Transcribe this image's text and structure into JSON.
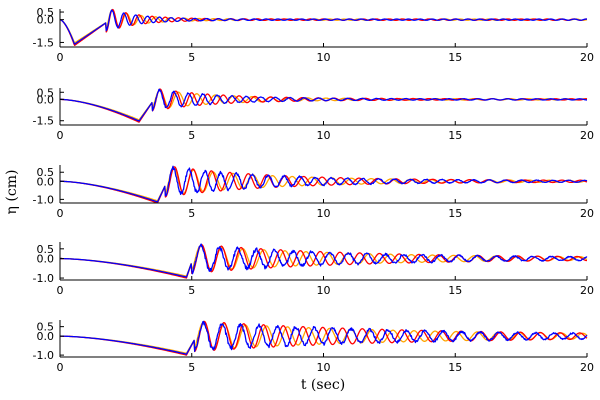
{
  "chart_data": {
    "type": "line",
    "grid": false,
    "legend": "none",
    "ylabel": "η (cm)",
    "xlabel": "t (sec)",
    "series_colors": {
      "orange": "#ffa500",
      "red": "#ff0000",
      "blue": "#0000ff"
    },
    "panels": [
      {
        "xlim": [
          0,
          20
        ],
        "ylim": [
          -1.8,
          0.7
        ],
        "xticks": [
          0,
          5,
          10,
          15,
          20
        ],
        "xtick_labels": [
          "0",
          "5",
          "10",
          "15",
          "20"
        ],
        "yticks": [
          0.5,
          0.0,
          -1.5
        ],
        "ytick_labels": [
          "0.5",
          "0.0",
          "-1.5"
        ],
        "trough": {
          "start": 0.0,
          "t": 0.55,
          "depth": -1.7,
          "end": 1.5
        },
        "wave": {
          "onset": 1.75,
          "amp": 0.7,
          "decay": 1.2,
          "red_period": 0.5,
          "orange_period": 0.55,
          "blue_period": 0.45,
          "noise": 0.02
        }
      },
      {
        "xlim": [
          0,
          20
        ],
        "ylim": [
          -1.8,
          0.8
        ],
        "xticks": [
          0,
          5,
          10,
          15,
          20
        ],
        "xtick_labels": [
          "0",
          "5",
          "10",
          "15",
          "20"
        ],
        "yticks": [
          0.5,
          0.0,
          -1.5
        ],
        "ytick_labels": [
          "0.5",
          "0.0",
          "-1.5"
        ],
        "trough": {
          "start": 0.0,
          "t": 3.0,
          "depth": -1.6,
          "end": 3.5
        },
        "wave": {
          "onset": 3.5,
          "amp": 0.7,
          "decay": 2.5,
          "red_period": 0.6,
          "orange_period": 0.7,
          "blue_period": 0.55,
          "noise": 0.05
        }
      },
      {
        "xlim": [
          0,
          20
        ],
        "ylim": [
          -1.2,
          0.9
        ],
        "xticks": [
          0,
          5,
          10,
          15,
          20
        ],
        "xtick_labels": [
          "0",
          "5",
          "10",
          "15",
          "20"
        ],
        "yticks": [
          0.5,
          0.0,
          -1.0
        ],
        "ytick_labels": [
          "0.5",
          "0.0",
          "-1.0"
        ],
        "trough": {
          "start": 0.0,
          "t": 3.7,
          "depth": -1.2,
          "end": 4.0
        },
        "wave": {
          "onset": 4.0,
          "amp": 0.75,
          "decay": 4.0,
          "red_period": 0.7,
          "orange_period": 0.75,
          "blue_period": 0.6,
          "noise": 0.08
        }
      },
      {
        "xlim": [
          0,
          20
        ],
        "ylim": [
          -1.1,
          0.85
        ],
        "xticks": [
          0,
          5,
          10,
          15,
          20
        ],
        "xtick_labels": [
          "0",
          "5",
          "10",
          "15",
          "20"
        ],
        "yticks": [
          0.5,
          0.0,
          -1.0
        ],
        "ytick_labels": [
          "0.5",
          "0.0",
          "-1.0"
        ],
        "trough": {
          "start": 0.0,
          "t": 4.8,
          "depth": -1.0,
          "end": 5.0
        },
        "wave": {
          "onset": 5.0,
          "amp": 0.65,
          "decay": 6.0,
          "red_period": 0.75,
          "orange_period": 0.8,
          "blue_period": 0.7,
          "noise": 0.08
        }
      },
      {
        "xlim": [
          0,
          20
        ],
        "ylim": [
          -1.1,
          0.85
        ],
        "xticks": [
          0,
          5,
          10,
          15,
          20
        ],
        "xtick_labels": [
          "0",
          "5",
          "10",
          "15",
          "20"
        ],
        "yticks": [
          0.5,
          0.0,
          -1.0
        ],
        "ytick_labels": [
          "0.5",
          "0.0",
          "-1.0"
        ],
        "trough": {
          "start": 0.0,
          "t": 4.8,
          "depth": -1.0,
          "end": 5.1
        },
        "wave": {
          "onset": 5.1,
          "amp": 0.7,
          "decay": 8.0,
          "red_period": 0.75,
          "orange_period": 0.8,
          "blue_period": 0.7,
          "noise": 0.08
        }
      }
    ]
  }
}
